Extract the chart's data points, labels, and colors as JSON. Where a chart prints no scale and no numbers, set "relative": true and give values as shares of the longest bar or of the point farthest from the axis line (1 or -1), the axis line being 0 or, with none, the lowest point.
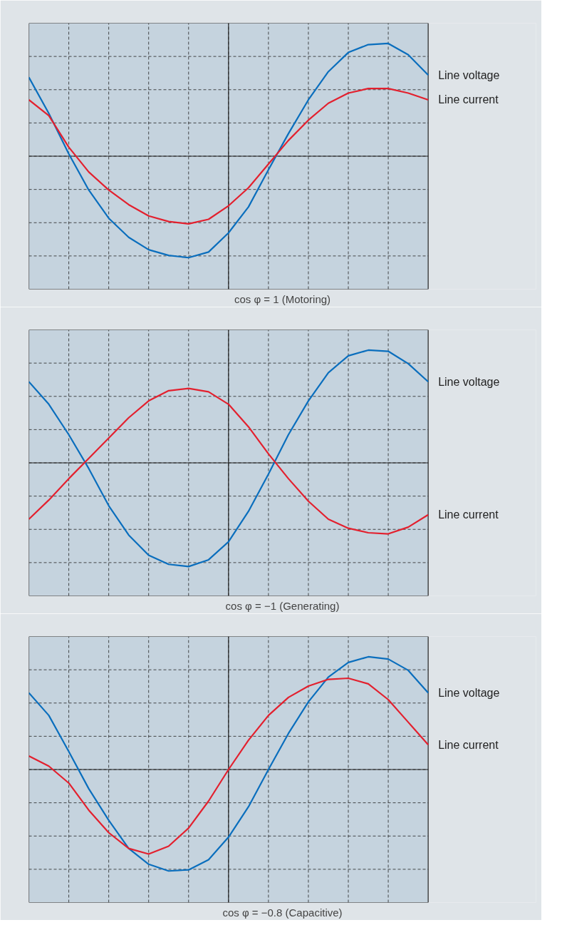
{
  "chart_data": [
    {
      "type": "line",
      "xlabel": "cos φ = 1 (Motoring)",
      "relative": true,
      "grid": true,
      "categories": [
        null,
        null,
        null,
        null,
        null,
        null,
        null,
        null,
        null,
        null,
        null,
        null,
        null,
        null,
        null,
        null,
        null,
        null,
        null,
        null,
        null
      ],
      "series": [
        {
          "name": "Line voltage",
          "color": "#0a6ebd",
          "values": [
            0.7,
            0.38,
            0.02,
            -0.3,
            -0.55,
            -0.72,
            -0.83,
            -0.88,
            -0.9,
            -0.85,
            -0.68,
            -0.45,
            -0.12,
            0.2,
            0.5,
            0.75,
            0.92,
            0.99,
            1.0,
            0.9,
            0.72
          ]
        },
        {
          "name": "Line current",
          "color": "#e3202e",
          "values": [
            0.5,
            0.36,
            0.08,
            -0.14,
            -0.3,
            -0.43,
            -0.53,
            -0.58,
            -0.6,
            -0.56,
            -0.44,
            -0.28,
            -0.07,
            0.14,
            0.32,
            0.47,
            0.56,
            0.6,
            0.6,
            0.56,
            0.5
          ]
        }
      ]
    },
    {
      "type": "line",
      "xlabel": "cos φ = −1 (Generating)",
      "relative": true,
      "grid": true,
      "categories": [
        null,
        null,
        null,
        null,
        null,
        null,
        null,
        null,
        null,
        null,
        null,
        null,
        null,
        null,
        null,
        null,
        null,
        null,
        null,
        null,
        null
      ],
      "series": [
        {
          "name": "Line voltage",
          "color": "#0a6ebd",
          "values": [
            0.72,
            0.52,
            0.25,
            -0.05,
            -0.38,
            -0.64,
            -0.82,
            -0.9,
            -0.92,
            -0.86,
            -0.7,
            -0.43,
            -0.1,
            0.25,
            0.55,
            0.8,
            0.95,
            1.0,
            0.99,
            0.88,
            0.72
          ]
        },
        {
          "name": "Line current",
          "color": "#e3202e",
          "values": [
            -0.5,
            -0.33,
            -0.14,
            0.04,
            0.22,
            0.4,
            0.55,
            0.64,
            0.66,
            0.63,
            0.52,
            0.32,
            0.08,
            -0.14,
            -0.34,
            -0.5,
            -0.58,
            -0.62,
            -0.63,
            -0.57,
            -0.46
          ]
        }
      ]
    },
    {
      "type": "line",
      "xlabel": "cos φ = −0.8 (Capacitive)",
      "relative": true,
      "grid": true,
      "categories": [
        null,
        null,
        null,
        null,
        null,
        null,
        null,
        null,
        null,
        null,
        null,
        null,
        null,
        null,
        null,
        null,
        null,
        null,
        null,
        null,
        null
      ],
      "series": [
        {
          "name": "Line voltage",
          "color": "#0a6ebd",
          "values": [
            0.68,
            0.48,
            0.16,
            -0.17,
            -0.45,
            -0.7,
            -0.84,
            -0.9,
            -0.89,
            -0.8,
            -0.6,
            -0.33,
            0.0,
            0.32,
            0.6,
            0.82,
            0.95,
            1.0,
            0.98,
            0.88,
            0.68
          ]
        },
        {
          "name": "Line current",
          "color": "#e3202e",
          "values": [
            0.12,
            0.03,
            -0.12,
            -0.36,
            -0.56,
            -0.7,
            -0.75,
            -0.68,
            -0.52,
            -0.28,
            0.0,
            0.26,
            0.48,
            0.64,
            0.74,
            0.8,
            0.81,
            0.76,
            0.62,
            0.42,
            0.22
          ]
        }
      ]
    }
  ]
}
